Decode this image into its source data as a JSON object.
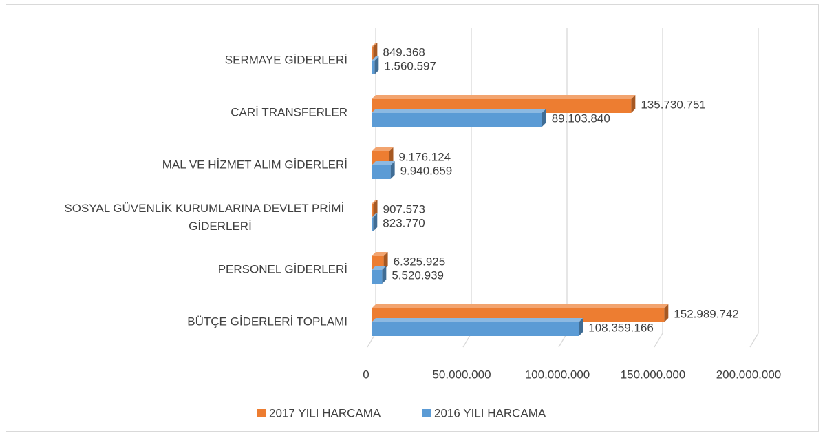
{
  "chart_data": {
    "type": "bar",
    "orientation": "horizontal",
    "three_d": true,
    "categories": [
      "BÜTÇE GİDERLERİ TOPLAMI",
      "PERSONEL GİDERLERİ",
      "SOSYAL GÜVENLİK KURUMLARINA DEVLET PRİMİ GİDERLERİ",
      "MAL VE HİZMET ALIM GİDERLERİ",
      "CARİ TRANSFERLER",
      "SERMAYE GİDERLERİ"
    ],
    "series": [
      {
        "name": "2017 YILI HARCAMA",
        "color": "#ED7D31",
        "values": [
          152989742,
          6325925,
          907573,
          9176124,
          135730751,
          849368
        ],
        "value_labels": [
          "152.989.742",
          "6.325.925",
          "907.573",
          "9.176.124",
          "135.730.751",
          "849.368"
        ]
      },
      {
        "name": "2016 YILI HARCAMA",
        "color": "#5B9BD5",
        "values": [
          108359166,
          5520939,
          823770,
          9940659,
          89103840,
          1560597
        ],
        "value_labels": [
          "108.359.166",
          "5.520.939",
          "823.770",
          "9.940.659",
          "89.103.840",
          "1.560.597"
        ]
      }
    ],
    "xlim": [
      0,
      200000000
    ],
    "xticks": [
      0,
      {
        "value": 50000000,
        "label": "50.000.000"
      },
      {
        "value": 100000000,
        "label": "100.000.000"
      },
      {
        "value": 150000000,
        "label": "150.000.000"
      },
      {
        "value": 200000000,
        "label": "200.000.000"
      }
    ],
    "grid": true,
    "legend": "bottom"
  }
}
